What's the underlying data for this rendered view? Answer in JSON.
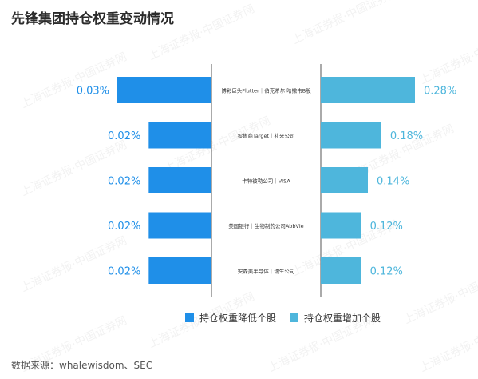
{
  "title": "先锋集团持仓权重变动情况",
  "watermark": "上海证券报·中国证券网",
  "source": "数据来源：whalewisdom、SEC",
  "colors": {
    "decrease": "#1f8fe8",
    "increase": "#4eb6dc"
  },
  "chart_data": {
    "type": "bar",
    "orientation": "horizontal-butterfly",
    "categories": [
      "博彩巨头Flutter｜伯克希尔·哈撒韦B股",
      "零售商Target｜礼来公司",
      "卡特彼勒公司｜VISA",
      "美国银行｜生物制药公司AbbVie",
      "安森美半导体｜瑞生公司"
    ],
    "series": [
      {
        "name": "持仓权重降低个股",
        "values": [
          0.03,
          0.02,
          0.02,
          0.02,
          0.02
        ],
        "labels": [
          "0.03%",
          "0.02%",
          "0.02%",
          "0.02%",
          "0.02%"
        ]
      },
      {
        "name": "持仓权重增加个股",
        "values": [
          0.28,
          0.18,
          0.14,
          0.12,
          0.12
        ],
        "labels": [
          "0.28%",
          "0.18%",
          "0.14%",
          "0.12%",
          "0.12%"
        ]
      }
    ],
    "legend_position": "bottom",
    "grid": false
  }
}
